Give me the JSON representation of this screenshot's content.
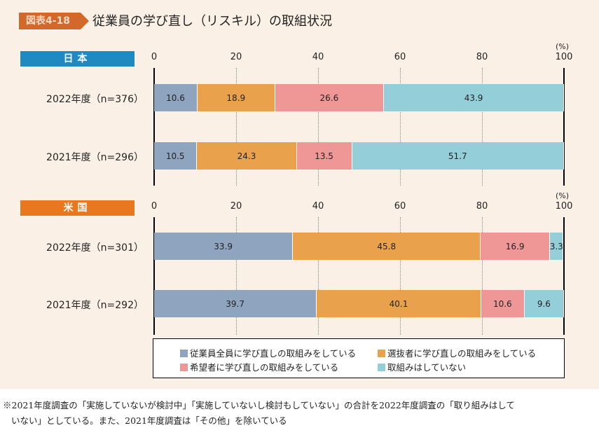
{
  "header": {
    "badge": "図表4-18",
    "title": "従業員の学び直し（リスキル）の取組状況"
  },
  "colors": {
    "all": "#8fa4bf",
    "selected": "#e9a24b",
    "applicants": "#ef9696",
    "none": "#94ced9",
    "japan": "#1f8ac2",
    "us": "#e8771f"
  },
  "chart_data": [
    {
      "type": "bar",
      "stacked": true,
      "orientation": "horizontal",
      "title": "日本",
      "xlim": [
        0,
        100
      ],
      "ticks": [
        "0",
        "20",
        "40",
        "60",
        "80",
        "100"
      ],
      "unit": "(%)",
      "categories": [
        "2022年度（n=376）",
        "2021年度（n=296）"
      ],
      "series": [
        {
          "name": "従業員全員に学び直しの取組みをしている",
          "values": [
            10.6,
            10.5
          ]
        },
        {
          "name": "選抜者に学び直しの取組みをしている",
          "values": [
            18.9,
            24.3
          ]
        },
        {
          "name": "希望者に学び直しの取組みをしている",
          "values": [
            26.6,
            13.5
          ]
        },
        {
          "name": "取組みはしていない",
          "values": [
            43.9,
            51.7
          ]
        }
      ]
    },
    {
      "type": "bar",
      "stacked": true,
      "orientation": "horizontal",
      "title": "米国",
      "xlim": [
        0,
        100
      ],
      "ticks": [
        "0",
        "20",
        "40",
        "60",
        "80",
        "100"
      ],
      "unit": "(%)",
      "categories": [
        "2022年度（n=301）",
        "2021年度（n=292）"
      ],
      "series": [
        {
          "name": "従業員全員に学び直しの取組みをしている",
          "values": [
            33.9,
            39.7
          ]
        },
        {
          "name": "選抜者に学び直しの取組みをしている",
          "values": [
            45.8,
            40.1
          ]
        },
        {
          "name": "希望者に学び直しの取組みをしている",
          "values": [
            16.9,
            10.6
          ]
        },
        {
          "name": "取組みはしていない",
          "values": [
            3.3,
            9.6
          ]
        }
      ]
    }
  ],
  "legend": [
    "従業員全員に学び直しの取組みをしている",
    "選抜者に学び直しの取組みをしている",
    "希望者に学び直しの取組みをしている",
    "取組みはしていない"
  ],
  "footnote": [
    "※2021年度調査の「実施していないが検討中」「実施していないし検討もしていない」の合計を2022年度調査の「取り組みはして",
    "いない」としている。また、2021年度調査は「その他」を除いている"
  ]
}
